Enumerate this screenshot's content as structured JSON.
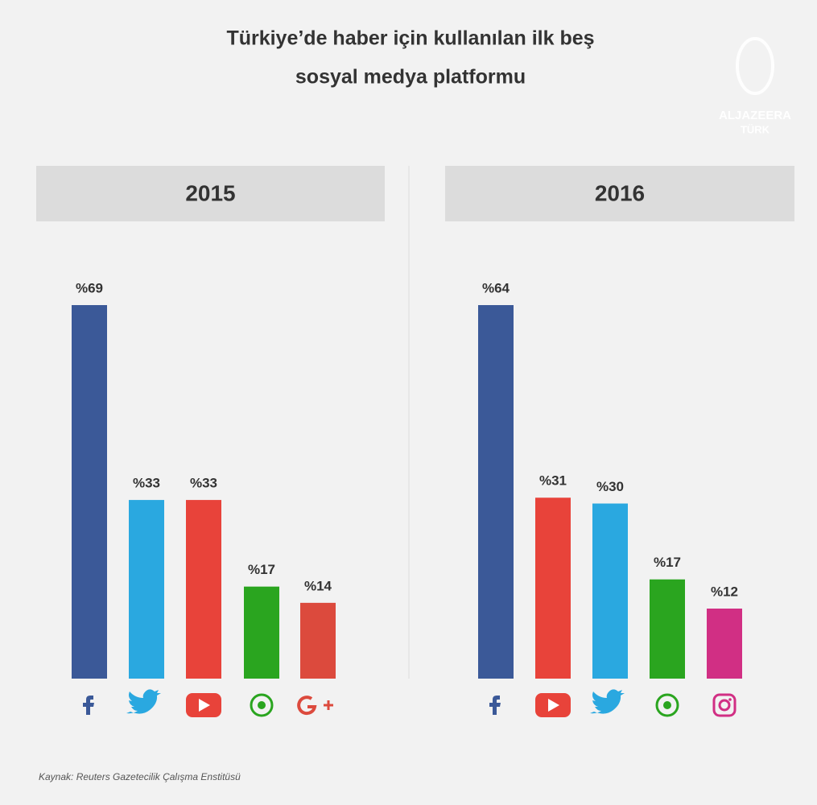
{
  "title_lines": [
    "Türkiye’de haber için kullanılan ilk beş",
    "sosyal medya platformu"
  ],
  "logo": [
    "ALJAZEERA",
    "TÜRK"
  ],
  "source": "Kaynak: Reuters Gazetecilik Çalışma Enstitüsü",
  "chart_data": [
    {
      "type": "bar",
      "title": "2015",
      "categories": [
        null,
        null,
        null,
        null,
        null
      ],
      "values": [
        69,
        33,
        33,
        17,
        14
      ],
      "value_labels": [
        "%69",
        "%33",
        "%33",
        "%17",
        "%14"
      ],
      "colors": [
        "#3b5998",
        "#2aa8e0",
        "#e8433a",
        "#2aa51f",
        "#dc4a3d"
      ]
    },
    {
      "type": "bar",
      "title": "2016",
      "categories": [
        null,
        null,
        null,
        null,
        null
      ],
      "values": [
        64,
        31,
        30,
        17,
        12
      ],
      "value_labels": [
        "%64",
        "%31",
        "%30",
        "%17",
        "%12"
      ],
      "colors": [
        "#3b5998",
        "#e8433a",
        "#2aa8e0",
        "#2aa51f",
        "#d12f84"
      ]
    }
  ]
}
